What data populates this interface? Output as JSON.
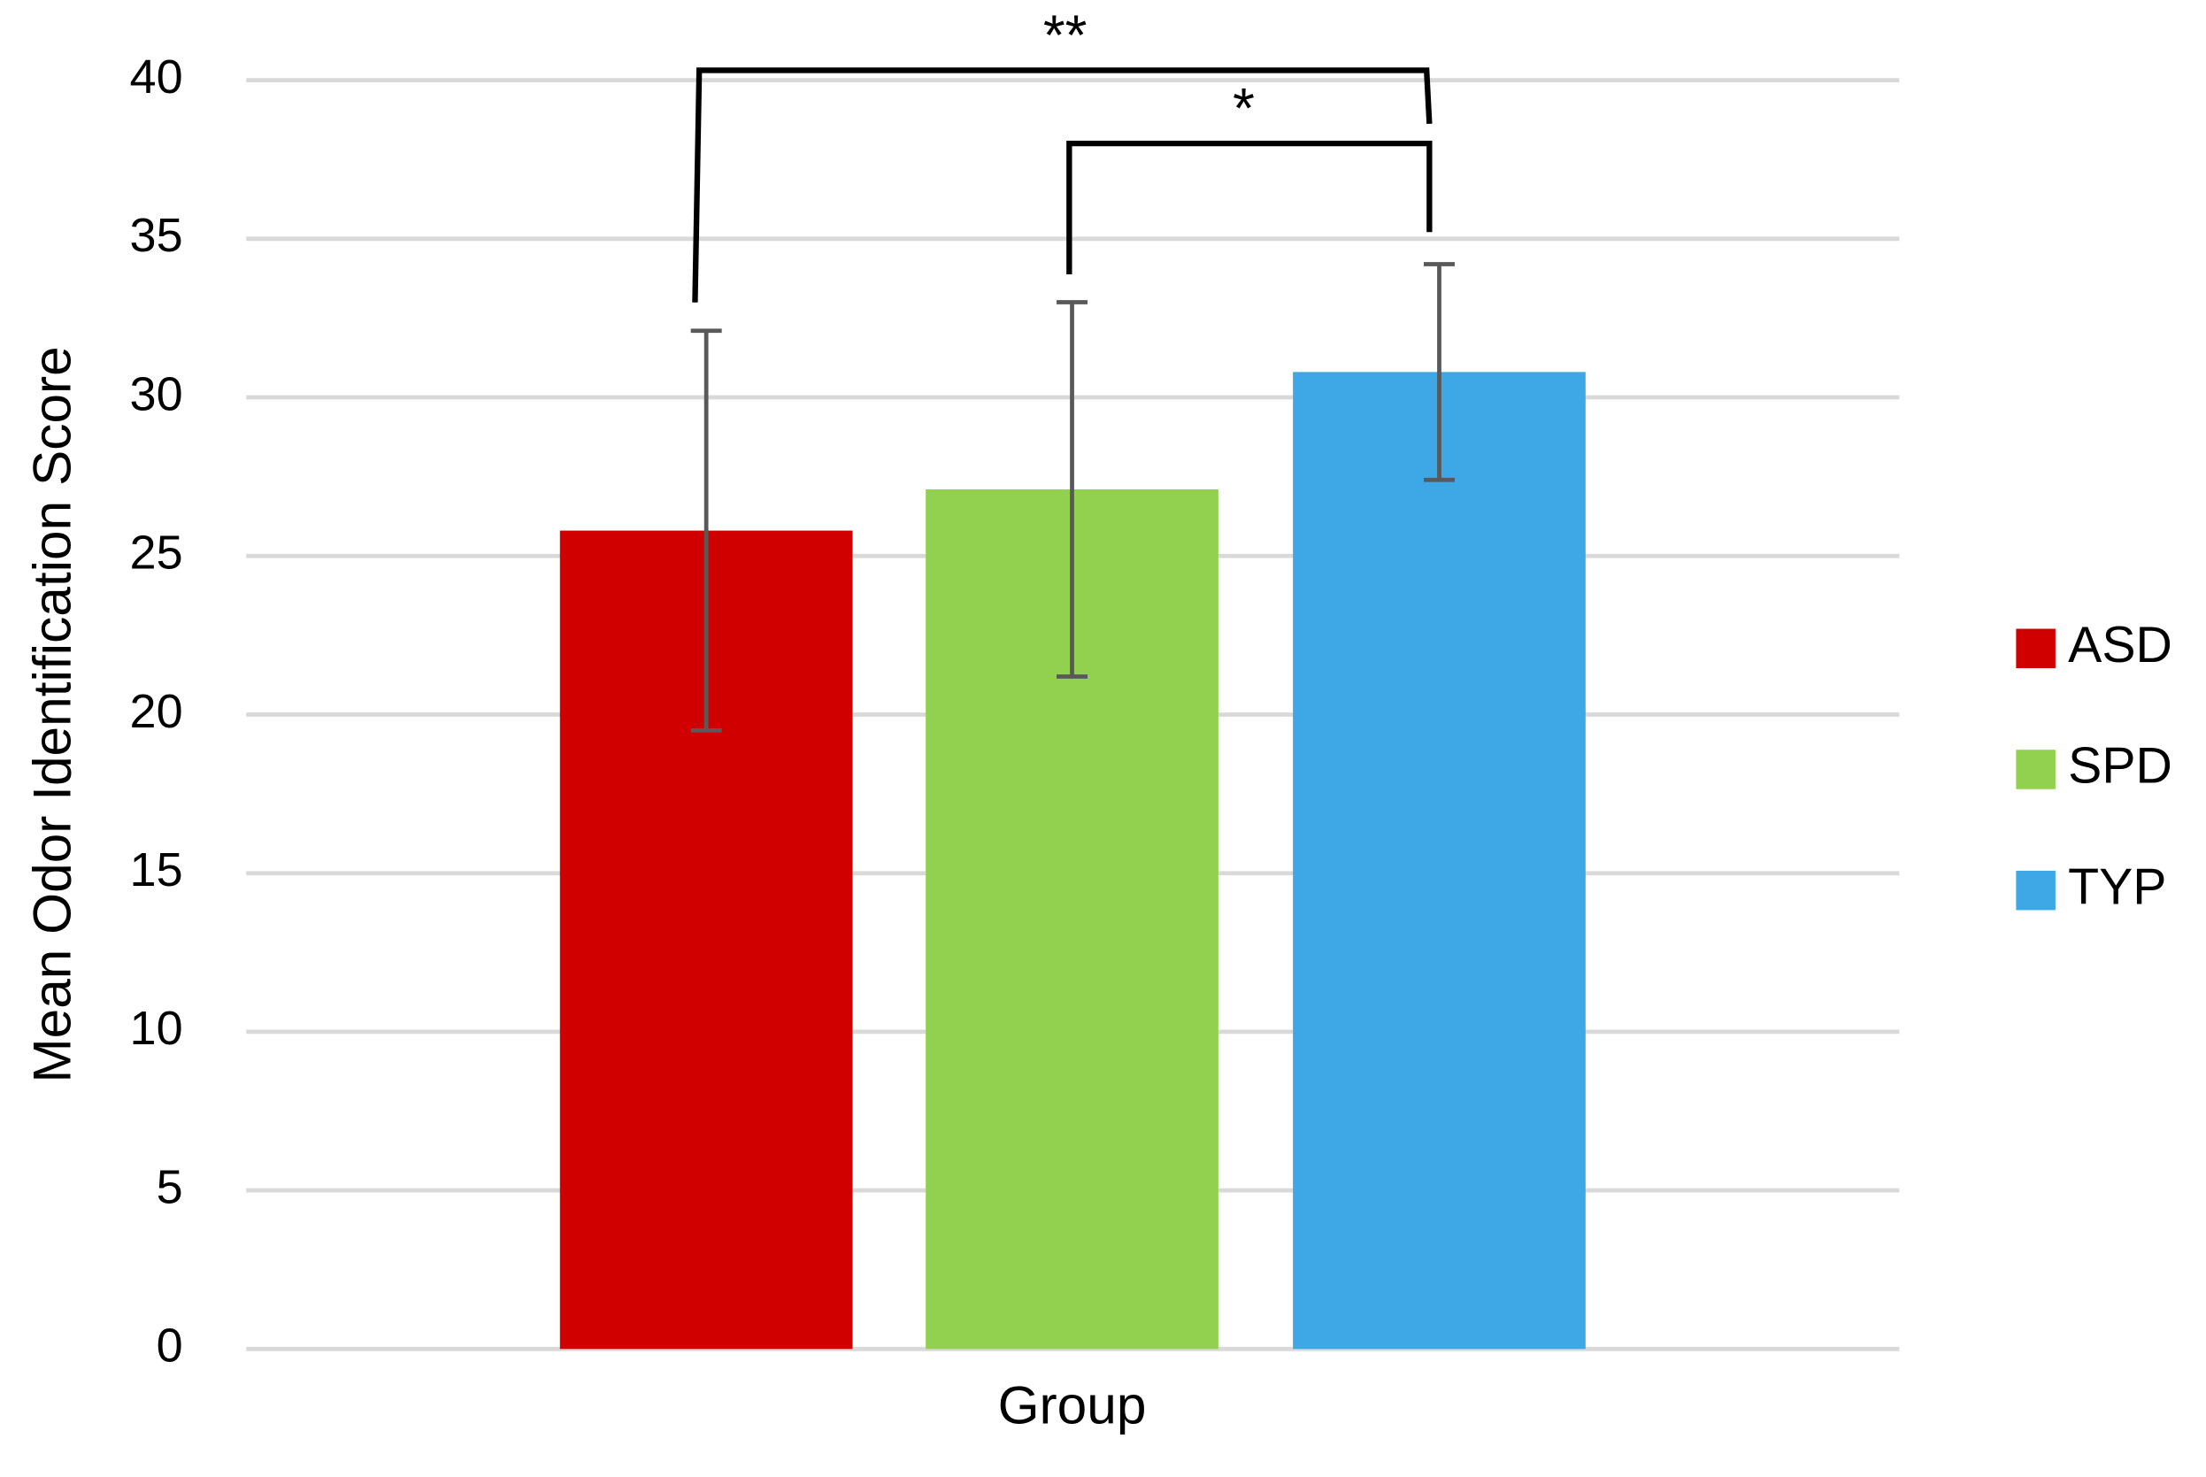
{
  "chart_data": {
    "type": "bar",
    "y_label": "Mean Odor Identification Score",
    "x_label": "Group",
    "categories": [
      "Group"
    ],
    "series": [
      {
        "name": "ASD",
        "color": "#d00000",
        "values": [
          25.8
        ],
        "errors": [
          6.3
        ]
      },
      {
        "name": "SPD",
        "color": "#92d050",
        "values": [
          27.1
        ],
        "errors": [
          5.9
        ]
      },
      {
        "name": "TYP",
        "color": "#3ea8e6",
        "values": [
          30.8
        ],
        "errors": [
          3.4
        ]
      }
    ],
    "annotations": [
      "**",
      "*"
    ],
    "ylim": [
      0,
      40
    ],
    "yticks": [
      0,
      5,
      10,
      15,
      20,
      25,
      30,
      35,
      40
    ],
    "grid": true,
    "legend": "right"
  }
}
